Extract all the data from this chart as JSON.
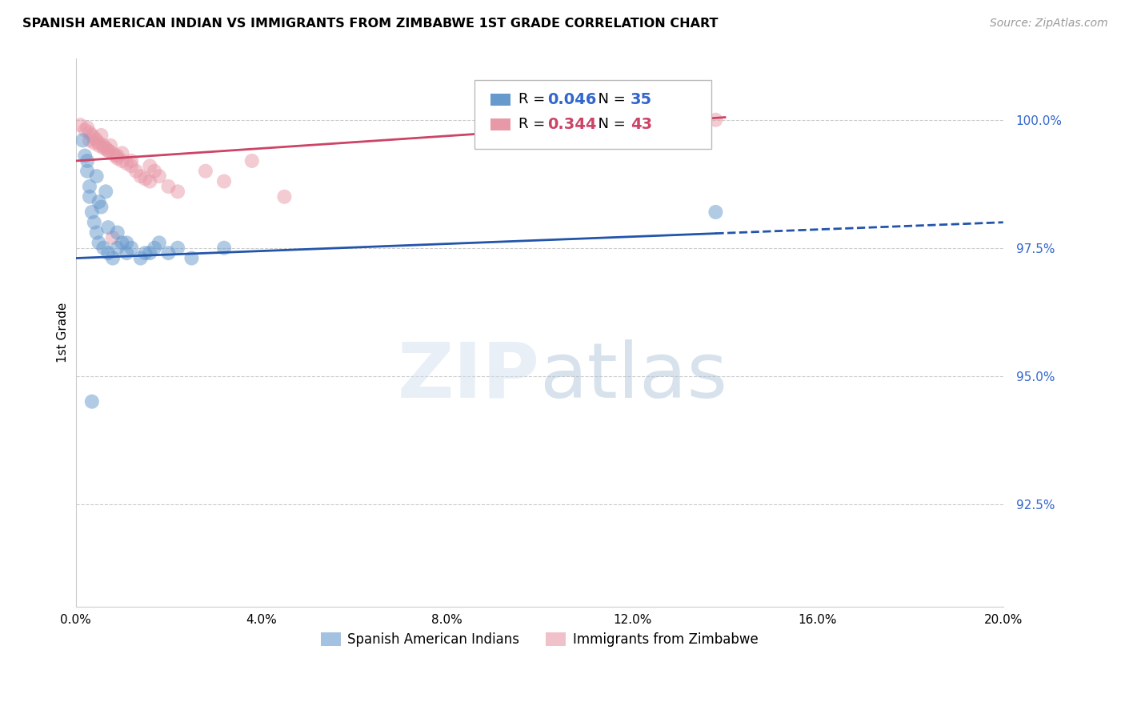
{
  "title": "SPANISH AMERICAN INDIAN VS IMMIGRANTS FROM ZIMBABWE 1ST GRADE CORRELATION CHART",
  "source": "Source: ZipAtlas.com",
  "ylabel": "1st Grade",
  "xlim": [
    0.0,
    20.0
  ],
  "ylim": [
    90.5,
    101.2
  ],
  "blue_r": "0.046",
  "blue_n": "35",
  "pink_r": "0.344",
  "pink_n": "43",
  "blue_color": "#6699cc",
  "pink_color": "#e899a8",
  "blue_line_color": "#2255aa",
  "pink_line_color": "#cc4466",
  "blue_line": {
    "x0": 0.0,
    "y0": 97.3,
    "x1": 20.0,
    "y1": 98.0
  },
  "pink_line": {
    "x0": 0.0,
    "y0": 99.2,
    "x1": 14.0,
    "y1": 100.05
  },
  "blue_solid_end": 13.8,
  "blue_scatter_x": [
    0.15,
    0.2,
    0.25,
    0.3,
    0.35,
    0.4,
    0.45,
    0.5,
    0.55,
    0.6,
    0.7,
    0.8,
    0.9,
    1.0,
    1.1,
    1.2,
    1.4,
    1.6,
    1.8,
    2.0,
    2.2,
    0.3,
    0.5,
    0.7,
    0.9,
    1.1,
    1.5,
    1.7,
    2.5,
    3.2,
    0.25,
    0.45,
    0.65,
    13.8,
    0.35
  ],
  "blue_scatter_y": [
    99.6,
    99.3,
    99.0,
    98.5,
    98.2,
    98.0,
    97.8,
    97.6,
    98.3,
    97.5,
    97.4,
    97.3,
    97.5,
    97.6,
    97.4,
    97.5,
    97.3,
    97.4,
    97.6,
    97.4,
    97.5,
    98.7,
    98.4,
    97.9,
    97.8,
    97.6,
    97.4,
    97.5,
    97.3,
    97.5,
    99.2,
    98.9,
    98.6,
    98.2,
    94.5
  ],
  "pink_scatter_x": [
    0.1,
    0.2,
    0.25,
    0.3,
    0.35,
    0.4,
    0.45,
    0.5,
    0.55,
    0.6,
    0.65,
    0.7,
    0.75,
    0.8,
    0.85,
    0.9,
    1.0,
    1.1,
    1.2,
    1.3,
    1.4,
    1.5,
    1.6,
    1.7,
    1.8,
    2.0,
    2.2,
    0.3,
    0.5,
    0.7,
    0.9,
    1.2,
    1.6,
    2.8,
    3.2,
    4.5,
    0.4,
    0.6,
    0.8,
    1.0,
    3.8,
    13.5,
    13.8
  ],
  "pink_scatter_y": [
    99.9,
    99.8,
    99.85,
    99.75,
    99.7,
    99.65,
    99.6,
    99.55,
    99.7,
    99.5,
    99.45,
    99.4,
    99.5,
    99.35,
    99.3,
    99.25,
    99.2,
    99.15,
    99.1,
    99.0,
    98.9,
    98.85,
    98.8,
    99.0,
    98.9,
    98.7,
    98.6,
    99.6,
    99.5,
    99.4,
    99.3,
    99.2,
    99.1,
    99.0,
    98.8,
    98.5,
    99.55,
    99.45,
    97.7,
    99.35,
    99.2,
    100.0,
    100.0
  ],
  "ytick_vals": [
    92.5,
    95.0,
    97.5,
    100.0
  ],
  "xtick_vals": [
    0.0,
    4.0,
    8.0,
    12.0,
    16.0,
    20.0
  ]
}
